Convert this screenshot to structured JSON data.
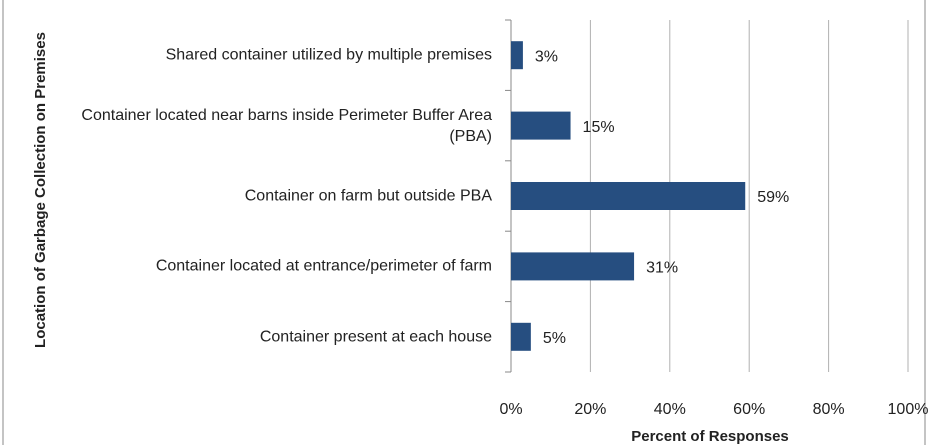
{
  "chart_data": {
    "type": "bar",
    "orientation": "horizontal",
    "categories": [
      "Shared container utilized by multiple premises",
      "Container located near barns inside Perimeter Buffer Area (PBA)",
      "Container on farm but outside PBA",
      "Container located at entrance/perimeter of farm",
      "Container present at each house"
    ],
    "values": [
      3,
      15,
      59,
      31,
      5
    ],
    "value_labels": [
      "3%",
      "15%",
      "59%",
      "31%",
      "5%"
    ],
    "color": "#264e80",
    "xlabel": "Percent of Responses",
    "ylabel": "Location of Garbage Collection on Premises",
    "xlim": [
      0,
      100
    ],
    "xticks": [
      {
        "value": 0,
        "label": "0%"
      },
      {
        "value": 20,
        "label": "20%"
      },
      {
        "value": 40,
        "label": "40%"
      },
      {
        "value": 60,
        "label": "60%"
      },
      {
        "value": 80,
        "label": "80%"
      },
      {
        "value": 100,
        "label": "100%"
      }
    ],
    "grid": true
  }
}
